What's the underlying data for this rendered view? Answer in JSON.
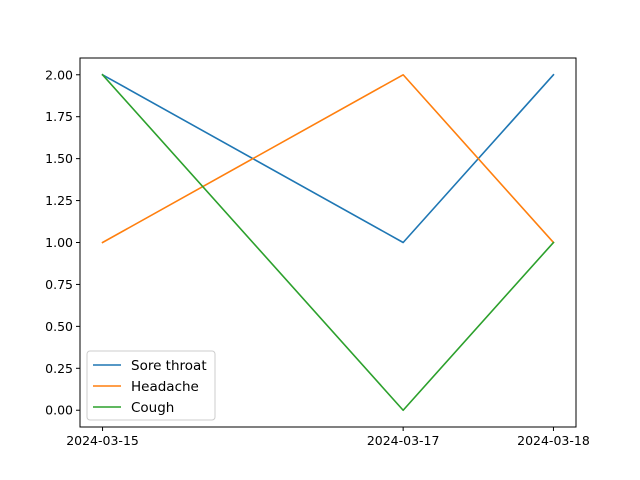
{
  "chart_data": {
    "type": "line",
    "title": "",
    "xlabel": "",
    "ylabel": "",
    "x": [
      "2024-03-15",
      "2024-03-17",
      "2024-03-18"
    ],
    "ylim": [
      -0.1,
      2.1
    ],
    "y_ticks": [
      "0.00",
      "0.25",
      "0.50",
      "0.75",
      "1.00",
      "1.25",
      "1.50",
      "1.75",
      "2.00"
    ],
    "grid": false,
    "legend_position": "lower-left",
    "series": [
      {
        "name": "Sore throat",
        "values": [
          2,
          1,
          2
        ],
        "color": "#1f77b4"
      },
      {
        "name": "Headache",
        "values": [
          1,
          2,
          1
        ],
        "color": "#ff7f0e"
      },
      {
        "name": "Cough",
        "values": [
          2,
          0,
          1
        ],
        "color": "#2ca02c"
      }
    ]
  }
}
